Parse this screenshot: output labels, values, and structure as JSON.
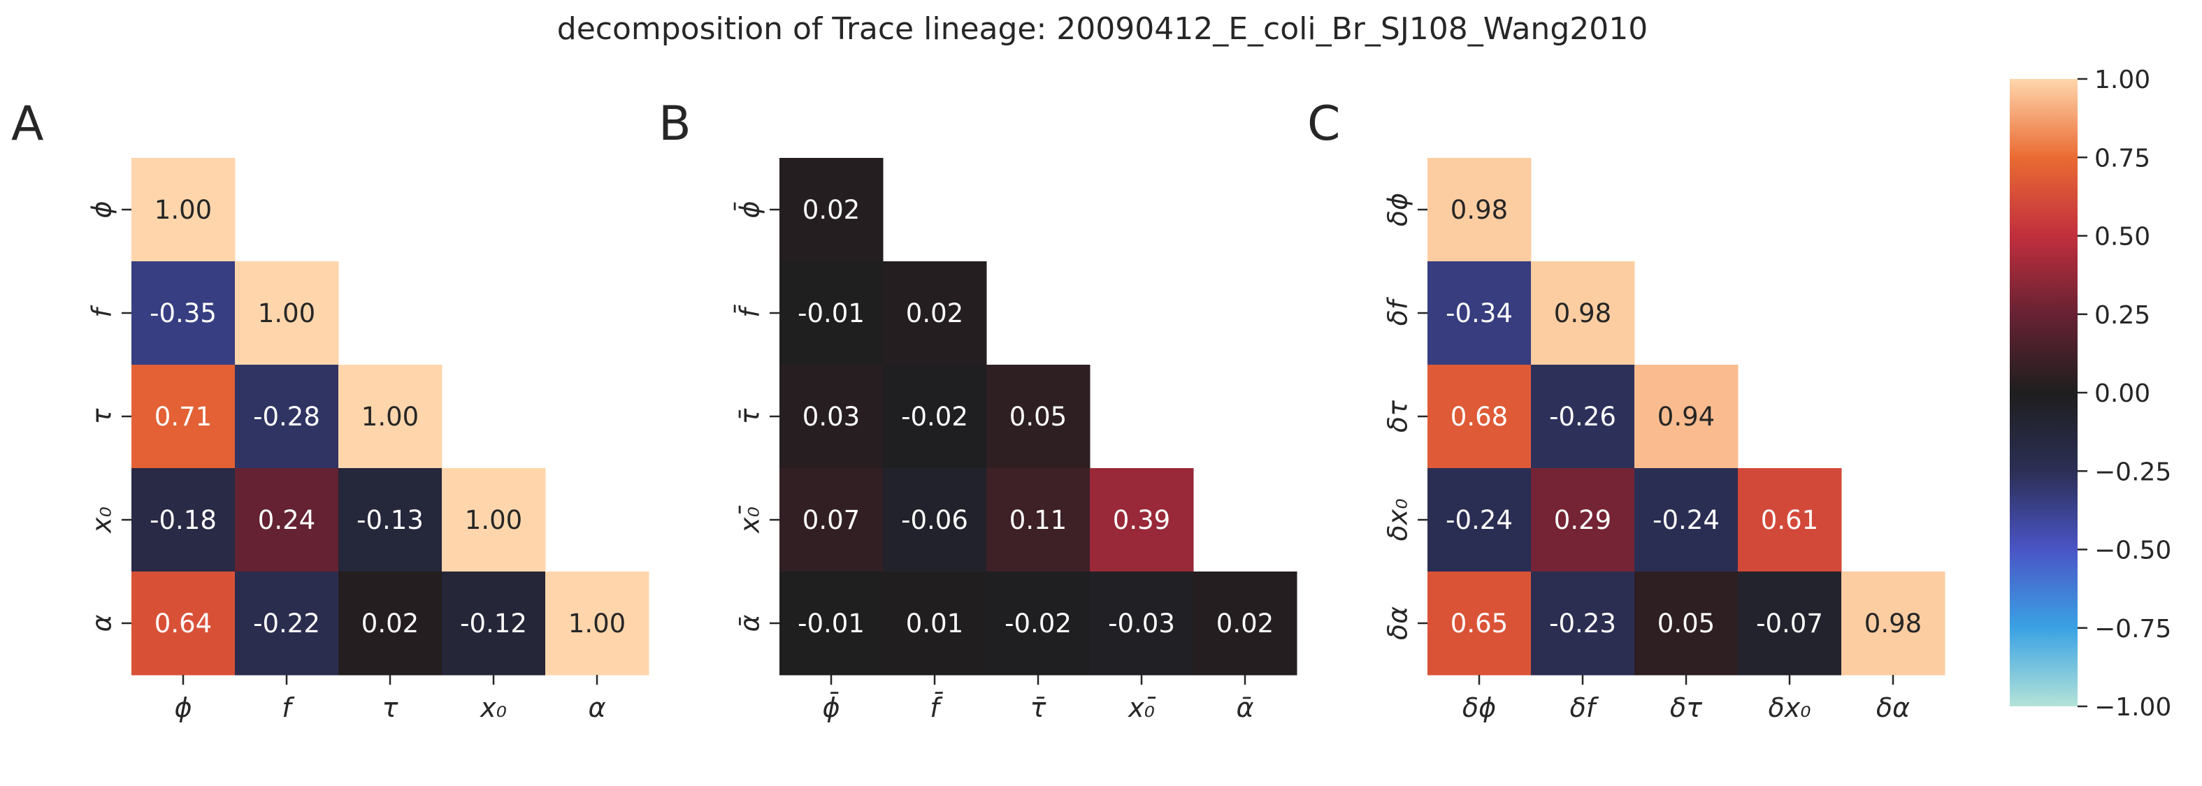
{
  "title": "decomposition of Trace lineage: 20090412_E_coli_Br_SJ108_Wang2010",
  "colormap": {
    "name": "icefire",
    "vmin": -1.0,
    "vmax": 1.0,
    "stops": [
      {
        "v": -1.0,
        "color": "#b4e3d8"
      },
      {
        "v": -0.75,
        "color": "#3aa2e4"
      },
      {
        "v": -0.5,
        "color": "#4a55c6"
      },
      {
        "v": -0.25,
        "color": "#2c2f55"
      },
      {
        "v": 0.0,
        "color": "#1e1e1e"
      },
      {
        "v": 0.25,
        "color": "#672233"
      },
      {
        "v": 0.5,
        "color": "#c12f3d"
      },
      {
        "v": 0.75,
        "color": "#ea6b33"
      },
      {
        "v": 1.0,
        "color": "#ffd6ac"
      }
    ],
    "ticks": [
      "1.00",
      "0.75",
      "0.50",
      "0.25",
      "0.00",
      "−0.25",
      "−0.50",
      "−0.75",
      "−1.00"
    ],
    "tick_values": [
      1.0,
      0.75,
      0.5,
      0.25,
      0.0,
      -0.25,
      -0.5,
      -0.75,
      -1.0
    ]
  },
  "chart_data": [
    {
      "type": "heatmap",
      "panel": "A",
      "labels": [
        "ϕ",
        "f",
        "τ",
        "x₀",
        "α"
      ],
      "matrix": [
        [
          1.0,
          null,
          null,
          null,
          null
        ],
        [
          -0.35,
          1.0,
          null,
          null,
          null
        ],
        [
          0.71,
          -0.28,
          1.0,
          null,
          null
        ],
        [
          -0.18,
          0.24,
          -0.13,
          1.0,
          null
        ],
        [
          0.64,
          -0.22,
          0.02,
          -0.12,
          1.0
        ]
      ],
      "annotations": [
        [
          "1.00",
          null,
          null,
          null,
          null
        ],
        [
          "-0.35",
          "1.00",
          null,
          null,
          null
        ],
        [
          "0.71",
          "-0.28",
          "1.00",
          null,
          null
        ],
        [
          "-0.18",
          "0.24",
          "-0.13",
          "1.00",
          null
        ],
        [
          "0.64",
          "-0.22",
          "0.02",
          "-0.12",
          "1.00"
        ]
      ]
    },
    {
      "type": "heatmap",
      "panel": "B",
      "labels": [
        "ϕ̄",
        "f̄",
        "τ̄",
        "x₀̄",
        "ᾱ"
      ],
      "matrix": [
        [
          0.02,
          null,
          null,
          null,
          null
        ],
        [
          -0.01,
          0.02,
          null,
          null,
          null
        ],
        [
          0.03,
          -0.02,
          0.05,
          null,
          null
        ],
        [
          0.07,
          -0.06,
          0.11,
          0.39,
          null
        ],
        [
          -0.01,
          0.01,
          -0.02,
          -0.03,
          0.02
        ]
      ],
      "annotations": [
        [
          "0.02",
          null,
          null,
          null,
          null
        ],
        [
          "-0.01",
          "0.02",
          null,
          null,
          null
        ],
        [
          "0.03",
          "-0.02",
          "0.05",
          null,
          null
        ],
        [
          "0.07",
          "-0.06",
          "0.11",
          "0.39",
          null
        ],
        [
          "-0.01",
          "0.01",
          "-0.02",
          "-0.03",
          "0.02"
        ]
      ]
    },
    {
      "type": "heatmap",
      "panel": "C",
      "labels": [
        "δϕ",
        "δf",
        "δτ",
        "δx₀",
        "δα"
      ],
      "matrix": [
        [
          0.98,
          null,
          null,
          null,
          null
        ],
        [
          -0.34,
          0.98,
          null,
          null,
          null
        ],
        [
          0.68,
          -0.26,
          0.94,
          null,
          null
        ],
        [
          -0.24,
          0.29,
          -0.24,
          0.61,
          null
        ],
        [
          0.65,
          -0.23,
          0.05,
          -0.07,
          0.98
        ]
      ],
      "annotations": [
        [
          "0.98",
          null,
          null,
          null,
          null
        ],
        [
          "-0.34",
          "0.98",
          null,
          null,
          null
        ],
        [
          "0.68",
          "-0.26",
          "0.94",
          null,
          null
        ],
        [
          "-0.24",
          "0.29",
          "-0.24",
          "0.61",
          null
        ],
        [
          "0.65",
          "-0.23",
          "0.05",
          "-0.07",
          "0.98"
        ]
      ]
    }
  ]
}
